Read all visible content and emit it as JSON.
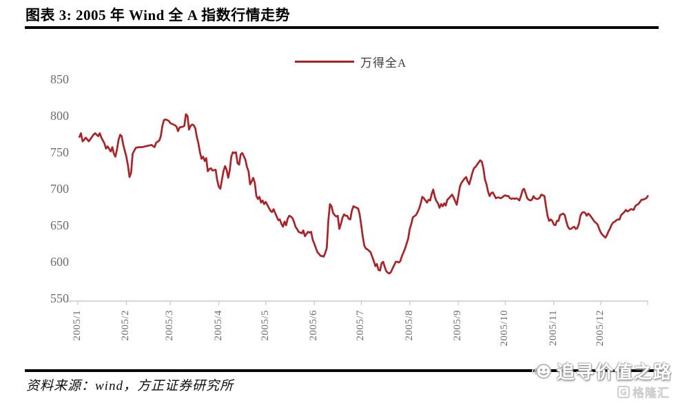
{
  "figure": {
    "title": "图表 3: 2005 年 Wind 全 A 指数行情走势",
    "source": "资料来源：wind，方正证券研究所"
  },
  "legend": {
    "label": "万得全A"
  },
  "watermark": {
    "text": "追寻价值之路",
    "logo_text": "格隆汇"
  },
  "colors": {
    "line": "#b01f24",
    "axis": "#c9c9c9",
    "tick_label": "#6b6b6b",
    "title": "#000000"
  },
  "chart_data": {
    "type": "line",
    "title": "2005 年 Wind 全 A 指数行情走势",
    "series_name": "万得全A",
    "xlabel": "",
    "ylabel": "",
    "ylim": [
      550,
      850
    ],
    "yticks": [
      850,
      800,
      750,
      700,
      650,
      600,
      550
    ],
    "x_tick_labels": [
      "2005/1",
      "2005/2",
      "2005/3",
      "2005/4",
      "2005/5",
      "2005/6",
      "2005/7",
      "2005/8",
      "2005/9",
      "2005/10",
      "2005/11",
      "2005/12"
    ],
    "x_month_start_days": [
      1,
      32,
      60,
      91,
      121,
      152,
      182,
      213,
      244,
      274,
      305,
      335
    ],
    "x_unit": "day_of_year_2005",
    "grid": false,
    "legend_position": "top-center",
    "points": [
      [
        2,
        771
      ],
      [
        3,
        776
      ],
      [
        4,
        765
      ],
      [
        5,
        767
      ],
      [
        6,
        770
      ],
      [
        8,
        765
      ],
      [
        9,
        768
      ],
      [
        11,
        774
      ],
      [
        12,
        776
      ],
      [
        14,
        772
      ],
      [
        15,
        776
      ],
      [
        16,
        770
      ],
      [
        18,
        762
      ],
      [
        19,
        755
      ],
      [
        20,
        758
      ],
      [
        22,
        751
      ],
      [
        23,
        757
      ],
      [
        24,
        748
      ],
      [
        25,
        744
      ],
      [
        26,
        754
      ],
      [
        27,
        767
      ],
      [
        28,
        774
      ],
      [
        29,
        772
      ],
      [
        30,
        760
      ],
      [
        32,
        744
      ],
      [
        33,
        732
      ],
      [
        34,
        716
      ],
      [
        35,
        722
      ],
      [
        36,
        748
      ],
      [
        37,
        752
      ],
      [
        38,
        756
      ],
      [
        40,
        757
      ],
      [
        42,
        757
      ],
      [
        44,
        758
      ],
      [
        46,
        759
      ],
      [
        48,
        760
      ],
      [
        50,
        757
      ],
      [
        51,
        763
      ],
      [
        53,
        766
      ],
      [
        54,
        772
      ],
      [
        55,
        786
      ],
      [
        56,
        794
      ],
      [
        57,
        795
      ],
      [
        59,
        793
      ],
      [
        60,
        790
      ],
      [
        61,
        789
      ],
      [
        63,
        787
      ],
      [
        64,
        785
      ],
      [
        65,
        779
      ],
      [
        66,
        784
      ],
      [
        68,
        785
      ],
      [
        69,
        786
      ],
      [
        70,
        802
      ],
      [
        71,
        800
      ],
      [
        72,
        781
      ],
      [
        73,
        786
      ],
      [
        74,
        788
      ],
      [
        75,
        787
      ],
      [
        76,
        783
      ],
      [
        77,
        771
      ],
      [
        78,
        762
      ],
      [
        79,
        750
      ],
      [
        80,
        741
      ],
      [
        81,
        744
      ],
      [
        82,
        738
      ],
      [
        83,
        742
      ],
      [
        84,
        724
      ],
      [
        85,
        727
      ],
      [
        86,
        728
      ],
      [
        87,
        725
      ],
      [
        89,
        726
      ],
      [
        90,
        712
      ],
      [
        91,
        703
      ],
      [
        92,
        700
      ],
      [
        93,
        712
      ],
      [
        94,
        724
      ],
      [
        95,
        731
      ],
      [
        96,
        726
      ],
      [
        97,
        715
      ],
      [
        98,
        725
      ],
      [
        99,
        744
      ],
      [
        100,
        750
      ],
      [
        101,
        749
      ],
      [
        102,
        750
      ],
      [
        103,
        735
      ],
      [
        104,
        733
      ],
      [
        105,
        747
      ],
      [
        106,
        749
      ],
      [
        108,
        740
      ],
      [
        109,
        730
      ],
      [
        110,
        724
      ],
      [
        111,
        706
      ],
      [
        112,
        710
      ],
      [
        113,
        715
      ],
      [
        114,
        708
      ],
      [
        115,
        690
      ],
      [
        116,
        686
      ],
      [
        117,
        689
      ],
      [
        118,
        681
      ],
      [
        119,
        684
      ],
      [
        120,
        679
      ],
      [
        121,
        682
      ],
      [
        123,
        674
      ],
      [
        124,
        670
      ],
      [
        125,
        668
      ],
      [
        126,
        672
      ],
      [
        127,
        667
      ],
      [
        128,
        662
      ],
      [
        129,
        657
      ],
      [
        130,
        658
      ],
      [
        131,
        652
      ],
      [
        132,
        648
      ],
      [
        133,
        655
      ],
      [
        134,
        650
      ],
      [
        135,
        659
      ],
      [
        136,
        663
      ],
      [
        137,
        662
      ],
      [
        138,
        660
      ],
      [
        139,
        655
      ],
      [
        140,
        648
      ],
      [
        141,
        645
      ],
      [
        142,
        641
      ],
      [
        144,
        639
      ],
      [
        145,
        643
      ],
      [
        146,
        635
      ],
      [
        147,
        638
      ],
      [
        148,
        641
      ],
      [
        149,
        640
      ],
      [
        150,
        641
      ],
      [
        151,
        630
      ],
      [
        152,
        625
      ],
      [
        153,
        619
      ],
      [
        154,
        613
      ],
      [
        155,
        611
      ],
      [
        156,
        608
      ],
      [
        157,
        608
      ],
      [
        158,
        607
      ],
      [
        159,
        612
      ],
      [
        160,
        619
      ],
      [
        161,
        657
      ],
      [
        162,
        679
      ],
      [
        163,
        676
      ],
      [
        164,
        667
      ],
      [
        165,
        664
      ],
      [
        166,
        662
      ],
      [
        167,
        663
      ],
      [
        168,
        645
      ],
      [
        169,
        652
      ],
      [
        170,
        660
      ],
      [
        171,
        665
      ],
      [
        172,
        663
      ],
      [
        173,
        663
      ],
      [
        174,
        659
      ],
      [
        175,
        658
      ],
      [
        176,
        670
      ],
      [
        177,
        676
      ],
      [
        178,
        675
      ],
      [
        179,
        674
      ],
      [
        180,
        673
      ],
      [
        181,
        665
      ],
      [
        182,
        650
      ],
      [
        183,
        634
      ],
      [
        184,
        622
      ],
      [
        185,
        618
      ],
      [
        186,
        617
      ],
      [
        187,
        615
      ],
      [
        188,
        613
      ],
      [
        189,
        607
      ],
      [
        190,
        601
      ],
      [
        191,
        594
      ],
      [
        192,
        597
      ],
      [
        193,
        589
      ],
      [
        194,
        588
      ],
      [
        195,
        598
      ],
      [
        196,
        600
      ],
      [
        197,
        593
      ],
      [
        198,
        587
      ],
      [
        199,
        585
      ],
      [
        200,
        584
      ],
      [
        201,
        586
      ],
      [
        202,
        591
      ],
      [
        203,
        595
      ],
      [
        204,
        600
      ],
      [
        205,
        600
      ],
      [
        206,
        599
      ],
      [
        207,
        601
      ],
      [
        208,
        608
      ],
      [
        209,
        613
      ],
      [
        210,
        618
      ],
      [
        211,
        625
      ],
      [
        212,
        632
      ],
      [
        213,
        645
      ],
      [
        214,
        652
      ],
      [
        215,
        661
      ],
      [
        217,
        664
      ],
      [
        218,
        668
      ],
      [
        219,
        673
      ],
      [
        220,
        680
      ],
      [
        221,
        689
      ],
      [
        222,
        687
      ],
      [
        223,
        684
      ],
      [
        224,
        681
      ],
      [
        225,
        685
      ],
      [
        226,
        684
      ],
      [
        227,
        693
      ],
      [
        228,
        699
      ],
      [
        229,
        689
      ],
      [
        230,
        683
      ],
      [
        231,
        680
      ],
      [
        232,
        674
      ],
      [
        233,
        679
      ],
      [
        234,
        676
      ],
      [
        235,
        680
      ],
      [
        236,
        677
      ],
      [
        237,
        685
      ],
      [
        238,
        687
      ],
      [
        240,
        692
      ],
      [
        241,
        688
      ],
      [
        242,
        683
      ],
      [
        243,
        678
      ],
      [
        244,
        690
      ],
      [
        245,
        703
      ],
      [
        246,
        708
      ],
      [
        247,
        711
      ],
      [
        248,
        714
      ],
      [
        249,
        716
      ],
      [
        250,
        710
      ],
      [
        251,
        706
      ],
      [
        252,
        714
      ],
      [
        253,
        722
      ],
      [
        254,
        728
      ],
      [
        255,
        730
      ],
      [
        256,
        733
      ],
      [
        257,
        736
      ],
      [
        258,
        739
      ],
      [
        259,
        737
      ],
      [
        260,
        728
      ],
      [
        261,
        713
      ],
      [
        262,
        706
      ],
      [
        263,
        696
      ],
      [
        264,
        690
      ],
      [
        265,
        694
      ],
      [
        266,
        695
      ],
      [
        267,
        691
      ],
      [
        268,
        687
      ],
      [
        269,
        688
      ],
      [
        270,
        688
      ],
      [
        271,
        687
      ],
      [
        272,
        688
      ],
      [
        273,
        690
      ],
      [
        274,
        691
      ],
      [
        275,
        690
      ],
      [
        276,
        690
      ],
      [
        277,
        687
      ],
      [
        278,
        686
      ],
      [
        279,
        687
      ],
      [
        280,
        686
      ],
      [
        281,
        687
      ],
      [
        282,
        686
      ],
      [
        283,
        684
      ],
      [
        284,
        690
      ],
      [
        285,
        698
      ],
      [
        286,
        700
      ],
      [
        287,
        694
      ],
      [
        288,
        687
      ],
      [
        289,
        685
      ],
      [
        290,
        684
      ],
      [
        291,
        685
      ],
      [
        292,
        690
      ],
      [
        293,
        687
      ],
      [
        294,
        686
      ],
      [
        295,
        686
      ],
      [
        296,
        688
      ],
      [
        297,
        692
      ],
      [
        298,
        691
      ],
      [
        299,
        690
      ],
      [
        300,
        676
      ],
      [
        301,
        663
      ],
      [
        302,
        656
      ],
      [
        303,
        658
      ],
      [
        304,
        656
      ],
      [
        305,
        651
      ],
      [
        306,
        650
      ],
      [
        307,
        656
      ],
      [
        308,
        656
      ],
      [
        309,
        664
      ],
      [
        310,
        665
      ],
      [
        311,
        666
      ],
      [
        312,
        664
      ],
      [
        313,
        655
      ],
      [
        314,
        648
      ],
      [
        315,
        645
      ],
      [
        316,
        645
      ],
      [
        317,
        647
      ],
      [
        318,
        648
      ],
      [
        319,
        645
      ],
      [
        320,
        646
      ],
      [
        321,
        652
      ],
      [
        322,
        663
      ],
      [
        323,
        667
      ],
      [
        324,
        668
      ],
      [
        325,
        667
      ],
      [
        326,
        663
      ],
      [
        327,
        666
      ],
      [
        328,
        664
      ],
      [
        329,
        661
      ],
      [
        330,
        658
      ],
      [
        331,
        655
      ],
      [
        332,
        653
      ],
      [
        333,
        651
      ],
      [
        334,
        645
      ],
      [
        335,
        640
      ],
      [
        336,
        637
      ],
      [
        337,
        635
      ],
      [
        338,
        633
      ],
      [
        339,
        637
      ],
      [
        340,
        642
      ],
      [
        341,
        646
      ],
      [
        342,
        651
      ],
      [
        343,
        654
      ],
      [
        344,
        655
      ],
      [
        345,
        657
      ],
      [
        346,
        658
      ],
      [
        347,
        658
      ],
      [
        348,
        664
      ],
      [
        349,
        666
      ],
      [
        350,
        668
      ],
      [
        351,
        671
      ],
      [
        352,
        669
      ],
      [
        353,
        670
      ],
      [
        354,
        672
      ],
      [
        355,
        672
      ],
      [
        356,
        671
      ],
      [
        357,
        676
      ],
      [
        358,
        678
      ],
      [
        359,
        679
      ],
      [
        360,
        682
      ],
      [
        361,
        685
      ],
      [
        362,
        685
      ],
      [
        364,
        687
      ],
      [
        365,
        690
      ]
    ]
  }
}
